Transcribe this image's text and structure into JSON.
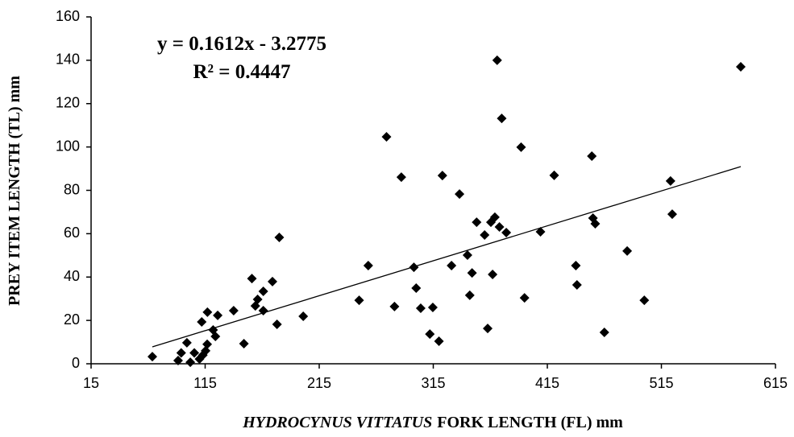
{
  "chart_data": {
    "type": "scatter",
    "xlabel_species": "HYDROCYNUS VITTATUS",
    "xlabel": "FORK LENGTH (FL) mm",
    "ylabel": "PREY ITEM LENGTH (TL)  mm",
    "annotations": [
      "y = 0.1612x - 3.2775",
      "R² = 0.4447"
    ],
    "trendline": {
      "slope": 0.1612,
      "intercept": -3.2775,
      "color": "#000000"
    },
    "xlim": [
      15,
      615
    ],
    "xticks": [
      15,
      115,
      215,
      315,
      415,
      515,
      615
    ],
    "ylim": [
      0,
      160
    ],
    "yticks": [
      0,
      20,
      40,
      60,
      80,
      100,
      120,
      140,
      160
    ],
    "grid": false,
    "series": [
      {
        "color": "#000000",
        "x": [
          68.7,
          91.3,
          94,
          99,
          102,
          105.5,
          110,
          112,
          113,
          115.4,
          116.8,
          117,
          122,
          124,
          126,
          140,
          149,
          156,
          159,
          161,
          166,
          166,
          174,
          178,
          180,
          201,
          250,
          258,
          274,
          281,
          287,
          298,
          300,
          304,
          312,
          314.6,
          320,
          323,
          331,
          338,
          345,
          347,
          349,
          353,
          360,
          362.7,
          365.5,
          367,
          369,
          371,
          373,
          375,
          379,
          392,
          395,
          409,
          421,
          440,
          441,
          454,
          455,
          457,
          465,
          485,
          500,
          523,
          524.5,
          584.6
        ],
        "values": [
          3.3,
          1.5,
          5,
          9.7,
          0.7,
          5,
          2.2,
          19.3,
          4,
          6,
          9,
          23.8,
          15.6,
          12.6,
          22.3,
          24.5,
          9.3,
          39.3,
          26.7,
          29.7,
          33.4,
          24.5,
          37.9,
          18.2,
          58.3,
          21.9,
          29.3,
          45.3,
          104.7,
          26.4,
          86.1,
          44.5,
          34.9,
          25.6,
          13.7,
          26,
          10.4,
          86.8,
          45.3,
          78.3,
          50.1,
          31.6,
          41.9,
          65.3,
          59.4,
          16.3,
          65.3,
          41.2,
          67.6,
          140,
          63.1,
          113.2,
          60.5,
          99.9,
          30.4,
          60.9,
          86.9,
          45.3,
          36.4,
          95.8,
          67.2,
          64.6,
          14.5,
          52,
          29.3,
          84.3,
          69,
          137
        ]
      }
    ]
  }
}
